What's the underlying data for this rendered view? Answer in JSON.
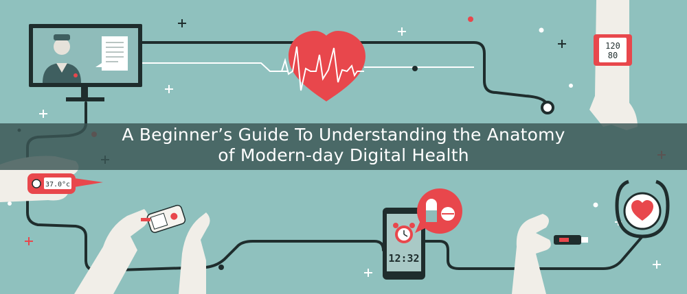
{
  "banner": {
    "title_line1": "A Beginner’s Guide To Understanding the Anatomy",
    "title_line2": "of Modern-day Digital Health"
  },
  "devices": {
    "blood_pressure_top": "120",
    "blood_pressure_bottom": "80",
    "thermometer_reading": "37.0°c",
    "tablet_time": "12:32"
  },
  "icons": [
    "doctor-monitor-icon",
    "heart-rate-icon",
    "smartwatch-icon",
    "thermometer-icon",
    "glucose-meter-icon",
    "tablet-alarm-icon",
    "pill-bubble-icon",
    "usb-stick-icon",
    "stethoscope-icon"
  ],
  "colors": {
    "background": "#8fc1be",
    "banner": "#3a5654",
    "accent_red": "#e8474c",
    "line": "#1f2d2d",
    "white": "#ffffff"
  }
}
